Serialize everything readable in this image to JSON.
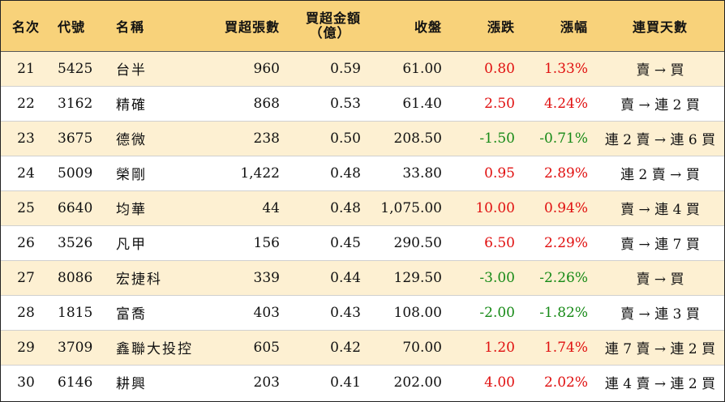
{
  "headers": {
    "rank": "名次",
    "code": "代號",
    "name": "名稱",
    "net_shares": "買超張數",
    "net_amount": "買超金額",
    "net_amount_unit": "（億）",
    "close": "收盤",
    "change": "漲跌",
    "pct": "漲幅",
    "streak": "連買天數"
  },
  "colors": {
    "header_bg": "#f8d27a",
    "alt_row_bg": "#fdf0d2",
    "up": "#e01010",
    "down": "#178a17"
  },
  "rows": [
    {
      "rank": "21",
      "code": "5425",
      "name": "台半",
      "shares": "960",
      "amount": "0.59",
      "close": "61.00",
      "change": "0.80",
      "pct": "1.33%",
      "dir": "up",
      "streak": "賣 → 買"
    },
    {
      "rank": "22",
      "code": "3162",
      "name": "精確",
      "shares": "868",
      "amount": "0.53",
      "close": "61.40",
      "change": "2.50",
      "pct": "4.24%",
      "dir": "up",
      "streak": "賣 → 連 2 買"
    },
    {
      "rank": "23",
      "code": "3675",
      "name": "德微",
      "shares": "238",
      "amount": "0.50",
      "close": "208.50",
      "change": "-1.50",
      "pct": "-0.71%",
      "dir": "down",
      "streak": "連 2 賣 → 連 6 買"
    },
    {
      "rank": "24",
      "code": "5009",
      "name": "榮剛",
      "shares": "1,422",
      "amount": "0.48",
      "close": "33.80",
      "change": "0.95",
      "pct": "2.89%",
      "dir": "up",
      "streak": "連 2 賣 → 買"
    },
    {
      "rank": "25",
      "code": "6640",
      "name": "均華",
      "shares": "44",
      "amount": "0.48",
      "close": "1,075.00",
      "change": "10.00",
      "pct": "0.94%",
      "dir": "up",
      "streak": "賣 → 連 4 買"
    },
    {
      "rank": "26",
      "code": "3526",
      "name": "凡甲",
      "shares": "156",
      "amount": "0.45",
      "close": "290.50",
      "change": "6.50",
      "pct": "2.29%",
      "dir": "up",
      "streak": "賣 → 連 7 買"
    },
    {
      "rank": "27",
      "code": "8086",
      "name": "宏捷科",
      "shares": "339",
      "amount": "0.44",
      "close": "129.50",
      "change": "-3.00",
      "pct": "-2.26%",
      "dir": "down",
      "streak": "賣 → 買"
    },
    {
      "rank": "28",
      "code": "1815",
      "name": "富喬",
      "shares": "403",
      "amount": "0.43",
      "close": "108.00",
      "change": "-2.00",
      "pct": "-1.82%",
      "dir": "down",
      "streak": "賣 → 連 3 買"
    },
    {
      "rank": "29",
      "code": "3709",
      "name": "鑫聯大投控",
      "shares": "605",
      "amount": "0.42",
      "close": "70.00",
      "change": "1.20",
      "pct": "1.74%",
      "dir": "up",
      "streak": "連 7 賣 → 連 2 買"
    },
    {
      "rank": "30",
      "code": "6146",
      "name": "耕興",
      "shares": "203",
      "amount": "0.41",
      "close": "202.00",
      "change": "4.00",
      "pct": "2.02%",
      "dir": "up",
      "streak": "連 4 賣 → 連 2 買"
    }
  ]
}
